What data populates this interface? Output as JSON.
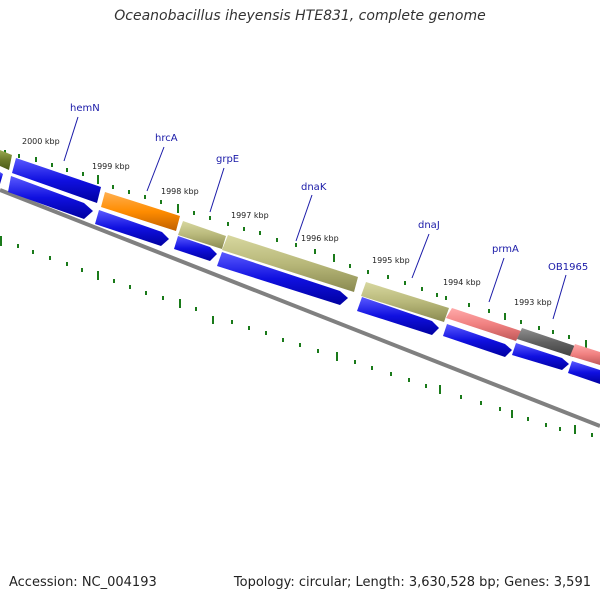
{
  "title": "Oceanobacillus iheyensis HTE831, complete genome",
  "accession": "Accession: NC_004193",
  "summary": "Topology: circular; Length: 3,630,528 bp; Genes: 3,591",
  "colors": {
    "cds_blue": "#1010e0",
    "olive": "#b8b87a",
    "orange": "#ff8c00",
    "salmon": "#f08080",
    "gray": "#606060",
    "tick_green": "#1a7a1a",
    "backbone": "#808080",
    "label_blue": "#1a1aa8"
  },
  "scale_labels": [
    "2000 kbp",
    "1999 kbp",
    "1998 kbp",
    "1997 kbp",
    "1996 kbp",
    "1995 kbp",
    "1994 kbp",
    "1993 kbp"
  ],
  "gene_labels": [
    "hemN",
    "hrcA",
    "grpE",
    "dnaK",
    "dnaJ",
    "prmA",
    "OB1965"
  ]
}
